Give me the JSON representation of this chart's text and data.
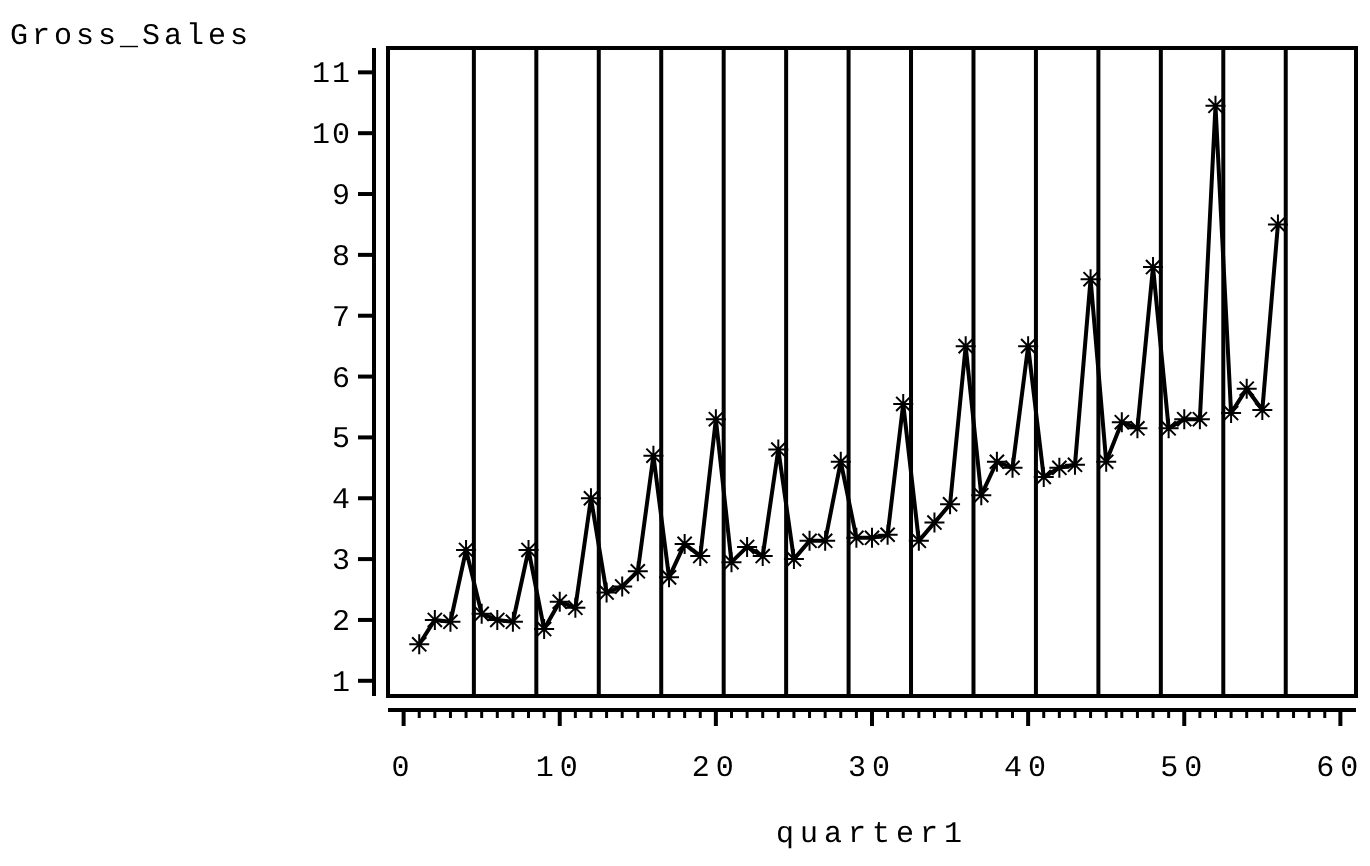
{
  "chart_data": {
    "type": "line",
    "xlabel": "quarter1",
    "ylabel": "Gross_Sales",
    "marker": "cross",
    "line_style": "solid",
    "grid": false,
    "x": [
      1,
      2,
      3,
      4,
      5,
      6,
      7,
      8,
      9,
      10,
      11,
      12,
      13,
      14,
      15,
      16,
      17,
      18,
      19,
      20,
      21,
      22,
      23,
      24,
      25,
      26,
      27,
      28,
      29,
      30,
      31,
      32,
      33,
      34,
      35,
      36,
      37,
      38,
      39,
      40,
      41,
      42,
      43,
      44,
      45,
      46,
      47,
      48,
      49,
      50,
      51,
      52,
      53,
      54,
      55,
      56
    ],
    "series": [
      {
        "color": "#000000",
        "values": [
          1.6,
          2.0,
          1.97,
          3.15,
          2.1,
          2.0,
          1.97,
          3.15,
          1.85,
          2.3,
          2.2,
          4.0,
          2.45,
          2.55,
          2.8,
          4.7,
          2.7,
          3.25,
          3.05,
          5.3,
          2.95,
          3.2,
          3.05,
          4.8,
          3.0,
          3.3,
          3.3,
          4.6,
          3.35,
          3.35,
          3.4,
          5.55,
          3.3,
          3.6,
          3.9,
          6.5,
          4.05,
          4.6,
          4.5,
          6.5,
          4.35,
          4.5,
          4.55,
          7.6,
          4.6,
          5.25,
          5.15,
          7.8,
          5.15,
          5.3,
          5.3,
          10.45,
          5.4,
          5.8,
          5.45,
          8.5
        ]
      }
    ],
    "xlim": [
      -1,
      61
    ],
    "ylim": [
      0.75,
      11.4
    ],
    "xticks": [
      0,
      {
        "value": 1,
        "label": null
      },
      {
        "value": 2,
        "label": null
      },
      {
        "value": 3,
        "label": null
      },
      {
        "value": 4,
        "label": null
      },
      {
        "value": 5,
        "label": null
      },
      {
        "value": 6,
        "label": null
      },
      {
        "value": 7,
        "label": null
      },
      {
        "value": 8,
        "label": null
      },
      {
        "value": 9,
        "label": null
      },
      10,
      {
        "value": 11,
        "label": null
      },
      {
        "value": 12,
        "label": null
      },
      {
        "value": 13,
        "label": null
      },
      {
        "value": 14,
        "label": null
      },
      {
        "value": 15,
        "label": null
      },
      {
        "value": 16,
        "label": null
      },
      {
        "value": 17,
        "label": null
      },
      {
        "value": 18,
        "label": null
      },
      {
        "value": 19,
        "label": null
      },
      20,
      {
        "value": 21,
        "label": null
      },
      {
        "value": 22,
        "label": null
      },
      {
        "value": 23,
        "label": null
      },
      {
        "value": 24,
        "label": null
      },
      {
        "value": 25,
        "label": null
      },
      {
        "value": 26,
        "label": null
      },
      {
        "value": 27,
        "label": null
      },
      {
        "value": 28,
        "label": null
      },
      {
        "value": 29,
        "label": null
      },
      30,
      {
        "value": 31,
        "label": null
      },
      {
        "value": 32,
        "label": null
      },
      {
        "value": 33,
        "label": null
      },
      {
        "value": 34,
        "label": null
      },
      {
        "value": 35,
        "label": null
      },
      {
        "value": 36,
        "label": null
      },
      {
        "value": 37,
        "label": null
      },
      {
        "value": 38,
        "label": null
      },
      {
        "value": 39,
        "label": null
      },
      40,
      {
        "value": 41,
        "label": null
      },
      {
        "value": 42,
        "label": null
      },
      {
        "value": 43,
        "label": null
      },
      {
        "value": 44,
        "label": null
      },
      {
        "value": 45,
        "label": null
      },
      {
        "value": 46,
        "label": null
      },
      {
        "value": 47,
        "label": null
      },
      {
        "value": 48,
        "label": null
      },
      {
        "value": 49,
        "label": null
      },
      50,
      {
        "value": 51,
        "label": null
      },
      {
        "value": 52,
        "label": null
      },
      {
        "value": 53,
        "label": null
      },
      {
        "value": 54,
        "label": null
      },
      {
        "value": 55,
        "label": null
      },
      {
        "value": 56,
        "label": null
      },
      {
        "value": 57,
        "label": null
      },
      {
        "value": 58,
        "label": null
      },
      {
        "value": 59,
        "label": null
      },
      60
    ],
    "yticks": [
      1,
      2,
      3,
      4,
      5,
      6,
      7,
      8,
      9,
      10,
      11
    ],
    "ref_lines": [
      {
        "axis": "x",
        "value": 4.5
      },
      {
        "axis": "x",
        "value": 8.5
      },
      {
        "axis": "x",
        "value": 12.5
      },
      {
        "axis": "x",
        "value": 16.5
      },
      {
        "axis": "x",
        "value": 20.5
      },
      {
        "axis": "x",
        "value": 24.5
      },
      {
        "axis": "x",
        "value": 28.5
      },
      {
        "axis": "x",
        "value": 32.5
      },
      {
        "axis": "x",
        "value": 36.5
      },
      {
        "axis": "x",
        "value": 40.5
      },
      {
        "axis": "x",
        "value": 44.5
      },
      {
        "axis": "x",
        "value": 48.5
      },
      {
        "axis": "x",
        "value": 52.5
      },
      {
        "axis": "x",
        "value": 56.5
      }
    ]
  }
}
